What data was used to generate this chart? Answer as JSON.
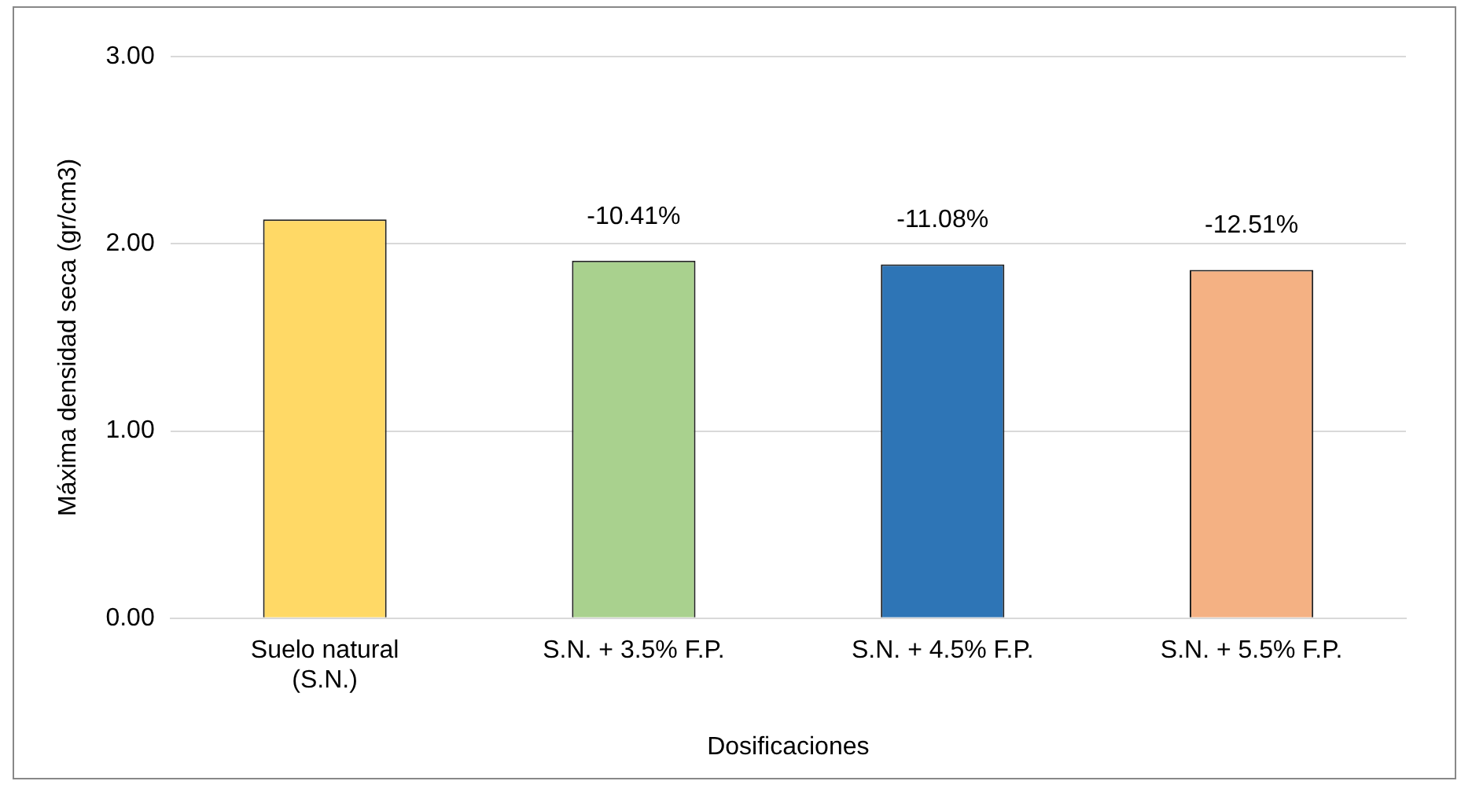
{
  "chart_data": {
    "type": "bar",
    "xlabel": "Dosificaciones",
    "ylabel": "Máxima densidad seca (gr/cm3)",
    "categories": [
      "Suelo natural\n(S.N.)",
      "S.N. + 3.5% F.P.",
      "S.N. + 4.5% F.P.",
      "S.N. + 5.5% F.P."
    ],
    "values": [
      2.13,
      1.91,
      1.89,
      1.86
    ],
    "colors": [
      "#ffd966",
      "#a9d18e",
      "#2e75b6",
      "#f4b183"
    ],
    "annotations": [
      {
        "text": "-10.41%",
        "x": "S.N. + 3.5% F.P.",
        "y": 1.91
      },
      {
        "text": "-11.08%",
        "x": "S.N. + 4.5% F.P.",
        "y": 1.89
      },
      {
        "text": "-12.51%",
        "x": "S.N. + 5.5% F.P.",
        "y": 1.86
      }
    ],
    "ylim": [
      0,
      3
    ],
    "yticks": [
      {
        "value": 0,
        "label": "0.00"
      },
      {
        "value": 1,
        "label": "1.00"
      },
      {
        "value": 2,
        "label": "2.00"
      },
      {
        "value": 3,
        "label": "3.00"
      }
    ],
    "grid": "y",
    "legend": false
  }
}
